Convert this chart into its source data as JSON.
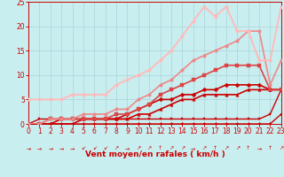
{
  "bg_color": "#c8eef0",
  "grid_color": "#b0d8dc",
  "line_color_dark": "#cc0000",
  "xlabel": "Vent moyen/en rafales ( km/h )",
  "xlim": [
    0,
    23
  ],
  "ylim": [
    0,
    25
  ],
  "xticks": [
    0,
    1,
    2,
    3,
    4,
    5,
    6,
    7,
    8,
    9,
    10,
    11,
    12,
    13,
    14,
    15,
    16,
    17,
    18,
    19,
    20,
    21,
    22,
    23
  ],
  "yticks": [
    0,
    5,
    10,
    15,
    20,
    25
  ],
  "series": [
    {
      "comment": "bottom flat line near 0-1",
      "x": [
        0,
        1,
        2,
        3,
        4,
        5,
        6,
        7,
        8,
        9,
        10,
        11,
        12,
        13,
        14,
        15,
        16,
        17,
        18,
        19,
        20,
        21,
        22,
        23
      ],
      "y": [
        0,
        0,
        0,
        0,
        0,
        0,
        0,
        0,
        0,
        0,
        0,
        0,
        0,
        0,
        0,
        0,
        0,
        0,
        0,
        0,
        0,
        0,
        0,
        2
      ],
      "color": "#cc0000",
      "lw": 1.0,
      "marker": "D",
      "ms": 2.0
    },
    {
      "comment": "second line near 1",
      "x": [
        0,
        1,
        2,
        3,
        4,
        5,
        6,
        7,
        8,
        9,
        10,
        11,
        12,
        13,
        14,
        15,
        16,
        17,
        18,
        19,
        20,
        21,
        22,
        23
      ],
      "y": [
        0,
        1,
        1,
        1,
        1,
        1,
        1,
        1,
        1,
        1,
        1,
        1,
        1,
        1,
        1,
        1,
        1,
        1,
        1,
        1,
        1,
        1,
        2,
        7
      ],
      "color": "#cc0000",
      "lw": 1.0,
      "marker": "s",
      "ms": 2.0
    },
    {
      "comment": "line rising to ~7",
      "x": [
        0,
        1,
        2,
        3,
        4,
        5,
        6,
        7,
        8,
        9,
        10,
        11,
        12,
        13,
        14,
        15,
        16,
        17,
        18,
        19,
        20,
        21,
        22,
        23
      ],
      "y": [
        0,
        0,
        0,
        0,
        0,
        1,
        1,
        1,
        1,
        1,
        2,
        2,
        3,
        4,
        5,
        5,
        6,
        6,
        6,
        6,
        7,
        7,
        7,
        7
      ],
      "color": "#cc0000",
      "lw": 1.2,
      "marker": "^",
      "ms": 2.5
    },
    {
      "comment": "line rising to ~8-9",
      "x": [
        0,
        1,
        2,
        3,
        4,
        5,
        6,
        7,
        8,
        9,
        10,
        11,
        12,
        13,
        14,
        15,
        16,
        17,
        18,
        19,
        20,
        21,
        22,
        23
      ],
      "y": [
        0,
        0,
        0,
        1,
        1,
        1,
        1,
        1,
        1,
        2,
        3,
        4,
        5,
        5,
        6,
        6,
        7,
        7,
        8,
        8,
        8,
        8,
        7,
        7
      ],
      "color": "#cc0000",
      "lw": 1.2,
      "marker": "D",
      "ms": 2.5
    },
    {
      "comment": "line rising to ~12-13",
      "x": [
        0,
        1,
        2,
        3,
        4,
        5,
        6,
        7,
        8,
        9,
        10,
        11,
        12,
        13,
        14,
        15,
        16,
        17,
        18,
        19,
        20,
        21,
        22,
        23
      ],
      "y": [
        0,
        0,
        1,
        1,
        1,
        1,
        1,
        1,
        2,
        2,
        3,
        4,
        6,
        7,
        8,
        9,
        10,
        11,
        12,
        12,
        12,
        12,
        7,
        7
      ],
      "color": "#dd4444",
      "lw": 1.2,
      "marker": "s",
      "ms": 2.5
    },
    {
      "comment": "light pink line rising to ~19-20",
      "x": [
        0,
        1,
        2,
        3,
        4,
        5,
        6,
        7,
        8,
        9,
        10,
        11,
        12,
        13,
        14,
        15,
        16,
        17,
        18,
        19,
        20,
        21,
        22,
        23
      ],
      "y": [
        0,
        0,
        1,
        1,
        1,
        2,
        2,
        2,
        3,
        3,
        5,
        6,
        8,
        9,
        11,
        13,
        14,
        15,
        16,
        17,
        19,
        19,
        8,
        13
      ],
      "color": "#ee8888",
      "lw": 1.2,
      "marker": "o",
      "ms": 2.5
    },
    {
      "comment": "lightest pink line reaching ~24-25 at peak",
      "x": [
        0,
        1,
        2,
        3,
        4,
        5,
        6,
        7,
        8,
        9,
        10,
        11,
        12,
        13,
        14,
        15,
        16,
        17,
        18,
        19,
        20,
        21,
        22,
        23
      ],
      "y": [
        5,
        5,
        5,
        5,
        6,
        6,
        6,
        6,
        8,
        9,
        10,
        11,
        13,
        15,
        18,
        21,
        24,
        22,
        24,
        19,
        19,
        13,
        13,
        24
      ],
      "color": "#ffbbbb",
      "lw": 1.4,
      "marker": "o",
      "ms": 2.5
    }
  ],
  "arrows": [
    "→",
    "→",
    "→",
    "→",
    "→",
    "↙",
    "↙",
    "↙",
    "↗",
    "→",
    "↗",
    "↗",
    "↑",
    "↗",
    "↗",
    "→",
    "↗",
    "↑",
    "↗",
    "↗",
    "↑",
    "→",
    "↑",
    "↗"
  ],
  "tick_fontsize": 5.5,
  "label_fontsize": 6.5
}
